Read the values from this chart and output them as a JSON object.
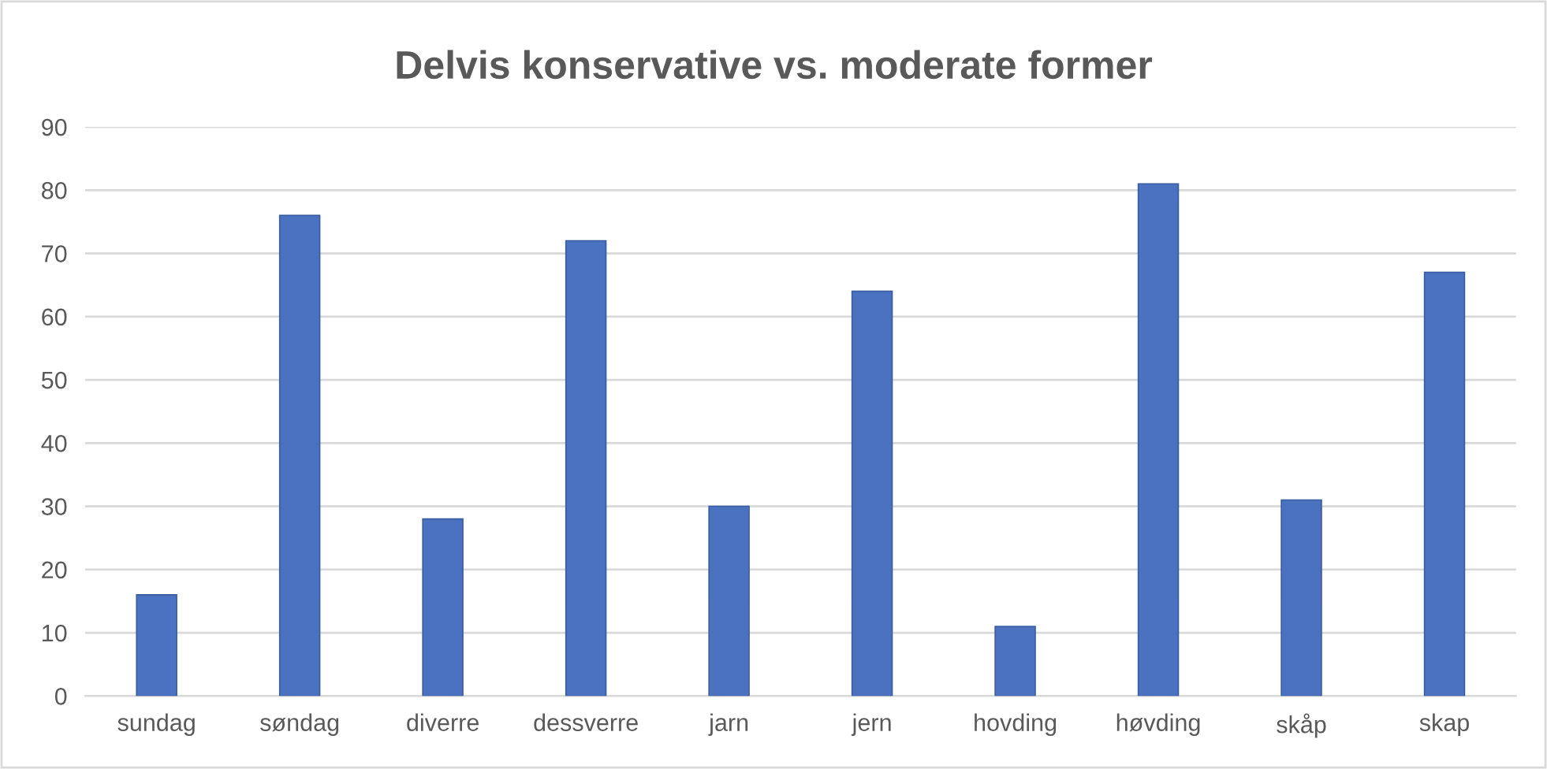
{
  "chart_data": {
    "type": "bar",
    "title": "Delvis konservative vs. moderate former",
    "categories": [
      "sundag",
      "søndag",
      "diverre",
      "dessverre",
      "jarn",
      "jern",
      "hovding",
      "høvding",
      "skåp",
      "skap"
    ],
    "values": [
      16,
      76,
      28,
      72,
      30,
      64,
      11,
      81,
      31,
      67
    ],
    "color": "#4a72c0",
    "ylim": [
      0,
      90
    ],
    "yticks": [
      0,
      10,
      20,
      30,
      40,
      50,
      60,
      70,
      80,
      90
    ],
    "grid": "y",
    "legend": false
  }
}
